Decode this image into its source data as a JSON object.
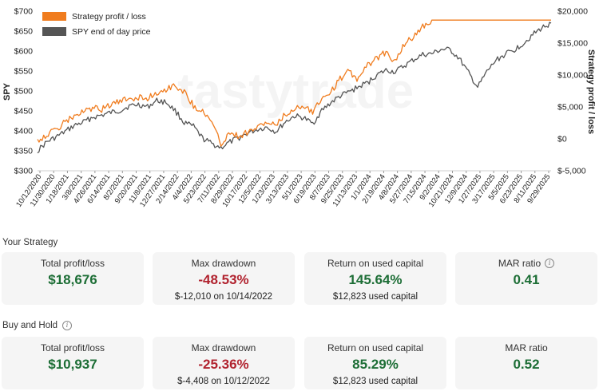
{
  "colors": {
    "strategy": "#f07c1e",
    "spy": "#555555",
    "positive": "#1d6e36",
    "negative": "#b1232f",
    "card_bg": "#f5f5f5"
  },
  "chart_data": {
    "type": "line",
    "watermark": "tastytrade",
    "legend": {
      "position": "top-left",
      "entries": [
        "Strategy profit / loss",
        "SPY end of day price"
      ]
    },
    "y_left": {
      "label": "SPY",
      "range": [
        300,
        700
      ],
      "ticks": [
        "$300",
        "$350",
        "$400",
        "$450",
        "$500",
        "$550",
        "$600",
        "$650",
        "$700"
      ]
    },
    "y_right": {
      "label": "Strategy profit / loss",
      "range": [
        -5000,
        20000
      ],
      "ticks": [
        "$-5,000",
        "$0",
        "$5,000",
        "$10,000",
        "$15,000",
        "$20,000"
      ]
    },
    "x_ticks": [
      "10/12/2020",
      "11/30/2020",
      "1/18/2021",
      "3/8/2021",
      "4/26/2021",
      "6/14/2021",
      "8/2/2021",
      "9/20/2021",
      "11/8/2021",
      "12/27/2021",
      "2/14/2022",
      "4/4/2022",
      "5/23/2022",
      "7/11/2022",
      "8/29/2022",
      "10/17/2022",
      "12/5/2022",
      "1/23/2023",
      "3/13/2023",
      "5/1/2023",
      "6/19/2023",
      "8/7/2023",
      "9/25/2023",
      "11/13/2023",
      "1/1/2024",
      "2/19/2024",
      "4/8/2024",
      "5/27/2024",
      "7/15/2024",
      "9/2/2024",
      "10/21/2024",
      "12/9/2024",
      "1/27/2025",
      "3/17/2025",
      "5/5/2025",
      "6/23/2025",
      "8/11/2025",
      "9/29/2025"
    ],
    "series": [
      {
        "name": "Strategy profit / loss",
        "axis": "right",
        "values": [
          -200,
          600,
          1400,
          2600,
          3600,
          4200,
          4800,
          4600,
          5400,
          5800,
          6300,
          6500,
          6400,
          7200,
          7800,
          8400,
          7400,
          5200,
          4400,
          2600,
          -800,
          1000,
          400,
          1200,
          1800,
          2600,
          2000,
          3800,
          4600,
          5400,
          4200,
          6400,
          7400,
          9400,
          10600,
          9200,
          11600,
          12600,
          13600,
          12100,
          14800,
          16000,
          17600,
          18600,
          18600,
          18600,
          18600,
          18600,
          18600,
          18600,
          18600,
          18600,
          18600,
          18600,
          18600,
          18600,
          18600
        ]
      },
      {
        "name": "SPY end of day price",
        "axis": "left",
        "values": [
          350,
          372,
          384,
          398,
          413,
          422,
          434,
          439,
          446,
          451,
          462,
          466,
          460,
          476,
          472,
          451,
          420,
          411,
          381,
          368,
          358,
          372,
          383,
          395,
          404,
          409,
          398,
          422,
          437,
          433,
          418,
          451,
          471,
          487,
          498,
          510,
          521,
          540,
          552,
          548,
          563,
          578,
          591,
          593,
          604,
          603,
          581,
          545,
          509,
          548,
          577,
          592,
          603,
          620,
          641,
          658,
          670
        ]
      }
    ]
  },
  "your_strategy": {
    "title": "Your Strategy",
    "cards": [
      {
        "label": "Total profit/loss",
        "value": "$18,676",
        "tone": "positive",
        "sub": ""
      },
      {
        "label": "Max drawdown",
        "value": "-48.53%",
        "tone": "negative",
        "sub": "$-12,010 on 10/14/2022"
      },
      {
        "label": "Return on used capital",
        "value": "145.64%",
        "tone": "positive",
        "sub": "$12,823 used capital"
      },
      {
        "label": "MAR ratio",
        "value": "0.41",
        "tone": "positive",
        "sub": "",
        "info": true
      }
    ]
  },
  "buy_and_hold": {
    "title": "Buy and Hold",
    "cards": [
      {
        "label": "Total profit/loss",
        "value": "$10,937",
        "tone": "positive",
        "sub": ""
      },
      {
        "label": "Max drawdown",
        "value": "-25.36%",
        "tone": "negative",
        "sub": "$-4,408 on 10/12/2022"
      },
      {
        "label": "Return on used capital",
        "value": "85.29%",
        "tone": "positive",
        "sub": "$12,823 used capital"
      },
      {
        "label": "MAR ratio",
        "value": "0.52",
        "tone": "positive",
        "sub": ""
      }
    ]
  }
}
